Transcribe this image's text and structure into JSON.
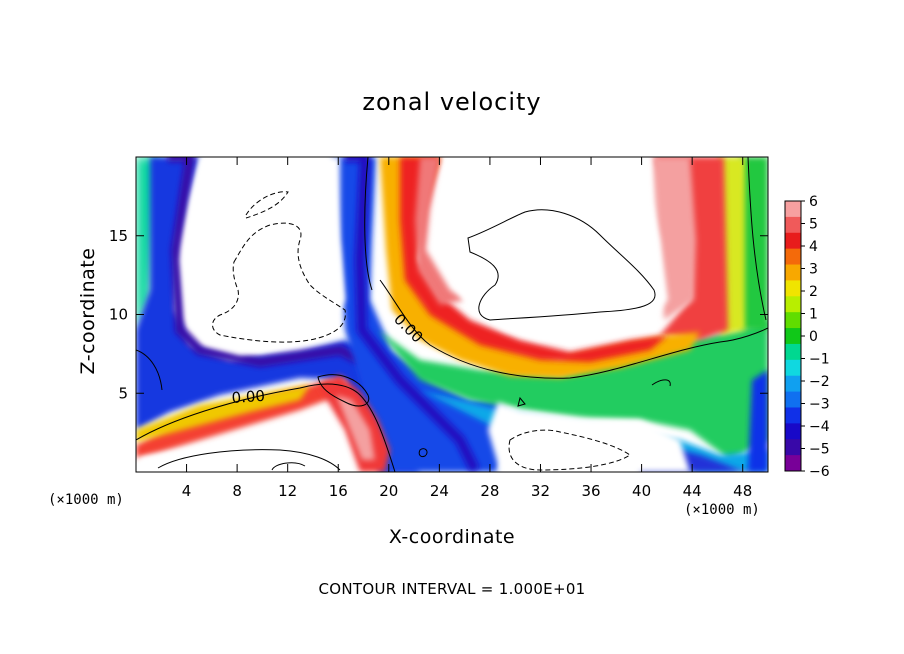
{
  "chart_data": {
    "type": "heatmap",
    "title": "zonal velocity",
    "xlabel": "X-coordinate",
    "ylabel": "Z-coordinate",
    "x_unit": "(×1000 m)",
    "z_unit": "(×1000 m)",
    "xlim": [
      0,
      50
    ],
    "ylim": [
      0,
      20
    ],
    "x_ticks": [
      4,
      8,
      12,
      16,
      20,
      24,
      28,
      32,
      36,
      40,
      44,
      48
    ],
    "y_ticks": [
      5,
      10,
      15
    ],
    "colorbar": {
      "ticks": [
        6,
        5,
        4,
        3,
        2,
        1,
        0,
        -1,
        -2,
        -3,
        -4,
        -5,
        -6
      ],
      "range": [
        -6,
        6
      ],
      "colors": [
        "#f7a0a0",
        "#f05a5a",
        "#e81c1c",
        "#f46a0a",
        "#f8a800",
        "#f0e400",
        "#b8ee00",
        "#60dd00",
        "#10c818",
        "#00d890",
        "#10d8e0",
        "#10a0f0",
        "#1070f0",
        "#1030e8",
        "#1808c8",
        "#3808a8",
        "#780098"
      ]
    },
    "contour_labels": [
      "0.00",
      "0.00"
    ],
    "footer": "CONTOUR INTERVAL = 1.000E+01"
  }
}
